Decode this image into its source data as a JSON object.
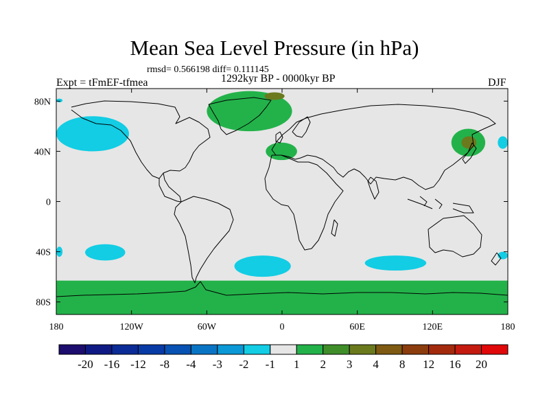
{
  "title": "Mean Sea Level Pressure (in hPa)",
  "stats": "rmsd= 0.566198 diff= 0.111145",
  "experiment": "Expt = tFmEF-tfmea",
  "period": "1292kyr BP - 0000kyr BP",
  "season": "DJF",
  "chart_data": {
    "type": "filled_contour_map",
    "variable": "Mean Sea Level Pressure anomaly",
    "units": "hPa",
    "xlim": [
      -180,
      180
    ],
    "ylim": [
      -90,
      90
    ],
    "x_ticks": [
      {
        "value": -180,
        "label": "180"
      },
      {
        "value": -120,
        "label": "120W"
      },
      {
        "value": -60,
        "label": "60W"
      },
      {
        "value": 0,
        "label": "0"
      },
      {
        "value": 60,
        "label": "60E"
      },
      {
        "value": 120,
        "label": "120E"
      },
      {
        "value": 180,
        "label": "180"
      }
    ],
    "y_ticks": [
      {
        "value": 80,
        "label": "80N"
      },
      {
        "value": 40,
        "label": "40N"
      },
      {
        "value": 0,
        "label": "0"
      },
      {
        "value": -40,
        "label": "40S"
      },
      {
        "value": -80,
        "label": "80S"
      }
    ],
    "background_level_color": "#e6e6e6",
    "colorbar": {
      "levels": [
        -20,
        -16,
        -12,
        -8,
        -4,
        -3,
        -2,
        -1,
        1,
        2,
        3,
        4,
        8,
        12,
        16,
        20
      ],
      "colors": [
        "#1d0d6e",
        "#0f1a84",
        "#0b2b96",
        "#083ba6",
        "#0752b3",
        "#0a74c4",
        "#0a98d6",
        "#12cde4",
        "#e6e6e6",
        "#23b24a",
        "#3f8e2a",
        "#6b7a1d",
        "#7e5a12",
        "#8c3d0d",
        "#a32a0c",
        "#c41a10",
        "#e00808"
      ]
    },
    "regions": [
      {
        "name": "north-pacific-arctic-low",
        "category": "-2 to -1",
        "lon_min": -180,
        "lon_max": -175,
        "lat_min": 79,
        "lat_max": 82
      },
      {
        "name": "north-pacific-low",
        "category": "-2 to -1",
        "lon_min": -180,
        "lon_max": -122,
        "lat_min": 40,
        "lat_max": 68
      },
      {
        "name": "greenland-arctic-high",
        "category": "1 to 2",
        "lon_min": -60,
        "lon_max": 8,
        "lat_min": 56,
        "lat_max": 88
      },
      {
        "name": "arctic-high-core",
        "category": "3 to 4",
        "lon_min": -14,
        "lon_max": 2,
        "lat_min": 81,
        "lat_max": 87
      },
      {
        "name": "mediterranean-high",
        "category": "1 to 2",
        "lon_min": -13,
        "lon_max": 12,
        "lat_min": 33,
        "lat_max": 47
      },
      {
        "name": "east-asia-high",
        "category": "1 to 2",
        "lon_min": 135,
        "lon_max": 162,
        "lat_min": 36,
        "lat_max": 58
      },
      {
        "name": "east-asia-high-core",
        "category": "3 to 4",
        "lon_min": 143,
        "lon_max": 155,
        "lat_min": 42,
        "lat_max": 52
      },
      {
        "name": "east-pacific-low-north",
        "category": "-2 to -1",
        "lon_min": 172,
        "lon_max": 180,
        "lat_min": 42,
        "lat_max": 52
      },
      {
        "name": "south-pacific-low-west",
        "category": "-2 to -1",
        "lon_min": -180,
        "lon_max": -175,
        "lat_min": -44,
        "lat_max": -36
      },
      {
        "name": "south-pacific-low",
        "category": "-2 to -1",
        "lon_min": -157,
        "lon_max": -125,
        "lat_min": -47,
        "lat_max": -34
      },
      {
        "name": "south-atlantic-low",
        "category": "-2 to -1",
        "lon_min": -38,
        "lon_max": 7,
        "lat_min": -60,
        "lat_max": -43
      },
      {
        "name": "indian-ocean-low",
        "category": "-2 to -1",
        "lon_min": 66,
        "lon_max": 115,
        "lat_min": -55,
        "lat_max": -43
      },
      {
        "name": "south-pacific-low-east",
        "category": "-2 to -1",
        "lon_min": 172,
        "lon_max": 180,
        "lat_min": -46,
        "lat_max": -40
      },
      {
        "name": "antarctic-high",
        "category": "1 to 2",
        "lon_min": -180,
        "lon_max": 180,
        "lat_min": -90,
        "lat_max": -63
      }
    ]
  }
}
